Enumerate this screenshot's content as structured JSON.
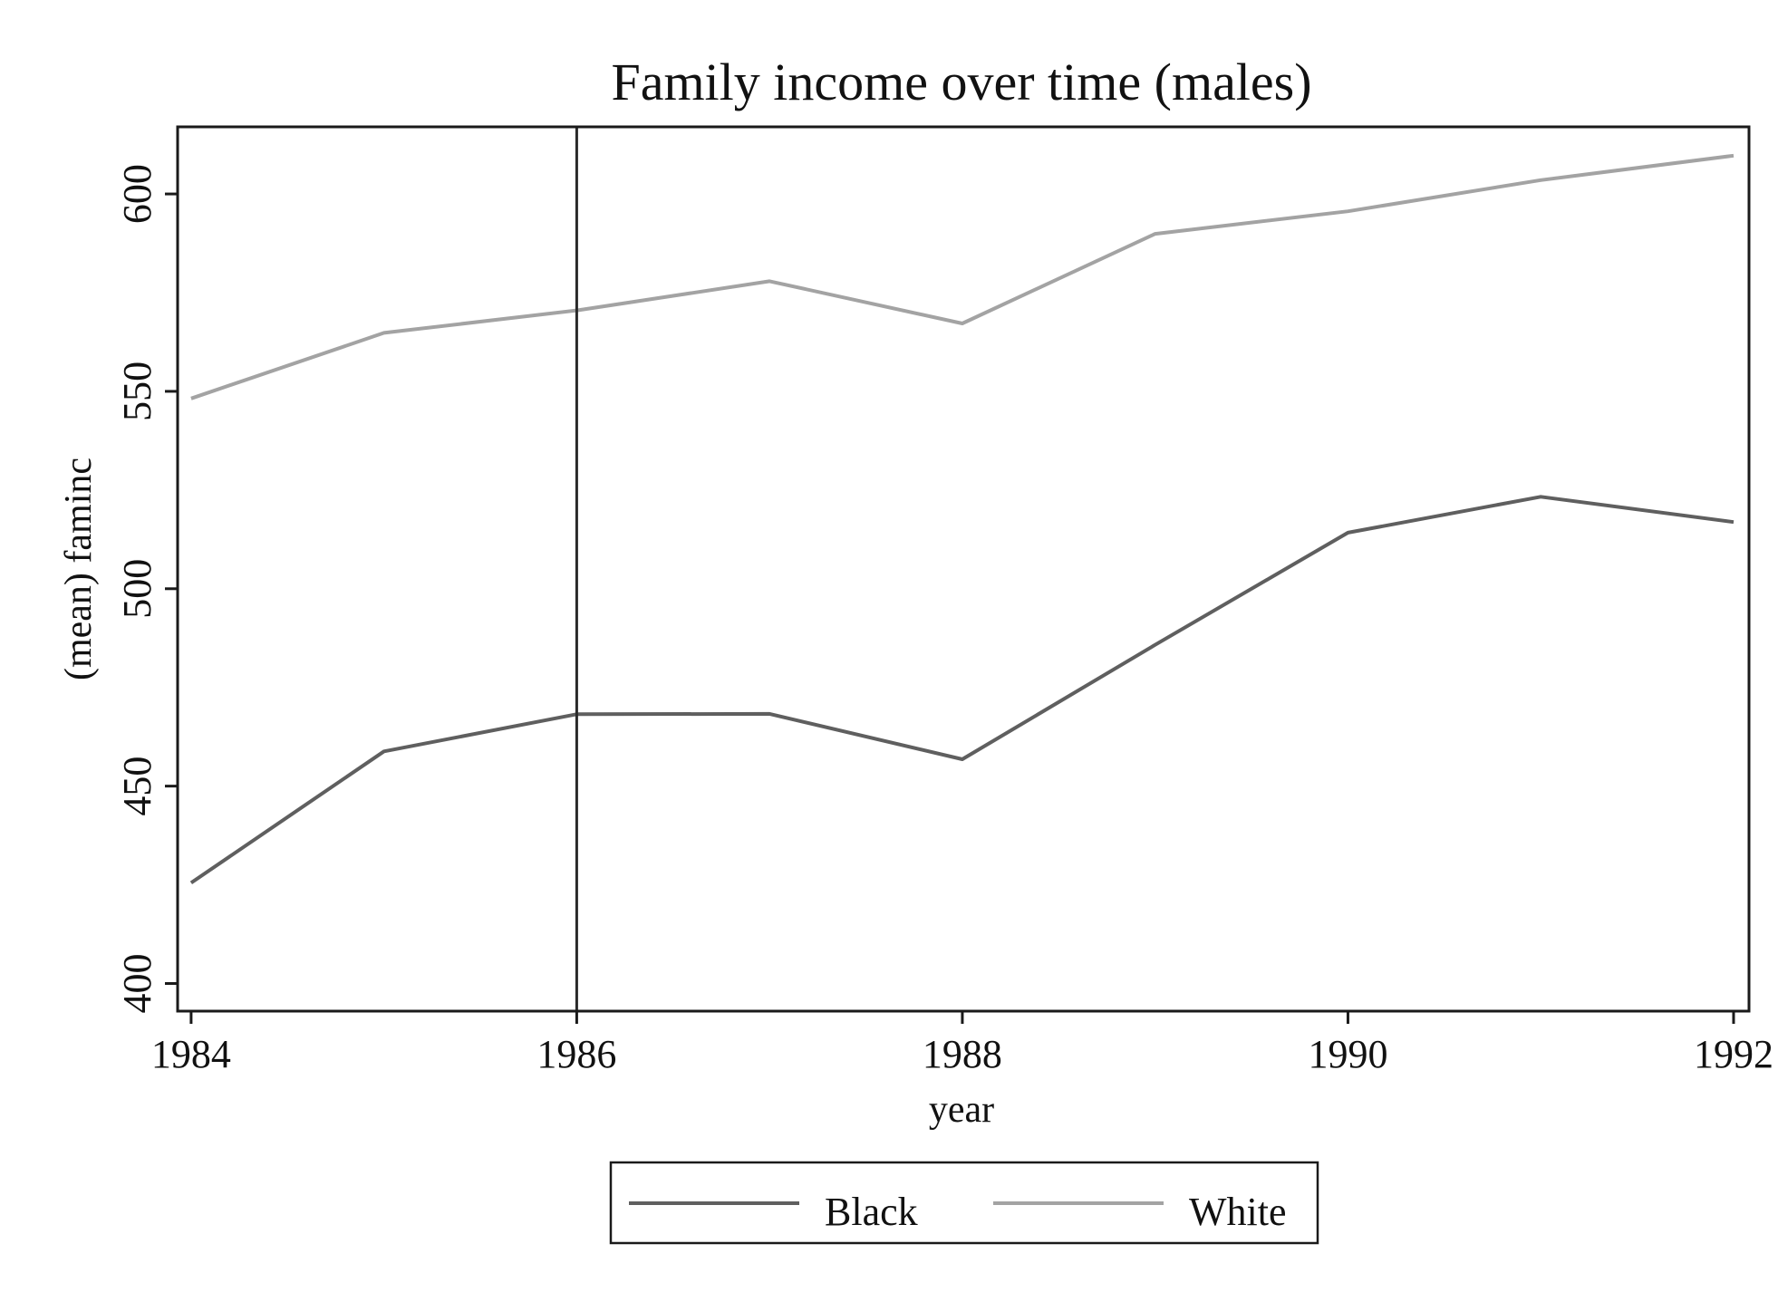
{
  "chart_data": {
    "type": "line",
    "title": "Family income over time (males)",
    "xlabel": "year",
    "ylabel": "(mean) faminc",
    "x": [
      1984,
      1985,
      1986,
      1987,
      1988,
      1989,
      1990,
      1991,
      1992
    ],
    "xlim": [
      1983.93,
      1992.08
    ],
    "ylim": [
      393,
      617
    ],
    "xticks": [
      1984,
      1986,
      1988,
      1990,
      1992
    ],
    "xtick_labels": [
      "1984",
      "1986",
      "1988",
      "1990",
      "1992"
    ],
    "yticks": [
      400,
      450,
      500,
      550,
      600
    ],
    "ytick_labels": [
      "400",
      "450",
      "500",
      "550",
      "600"
    ],
    "reference_line_x": 1986,
    "grid": false,
    "legend_position": "bottom-center",
    "series": [
      {
        "name": "Black",
        "color": "#5f5f5f",
        "values": [
          425.5,
          458.8,
          468.2,
          468.3,
          456.8,
          485.8,
          514.2,
          523.3,
          516.9
        ]
      },
      {
        "name": "White",
        "color": "#a3a3a3",
        "values": [
          548.2,
          564.8,
          570.5,
          577.9,
          567.2,
          589.9,
          595.6,
          603.5,
          609.7
        ]
      }
    ]
  }
}
